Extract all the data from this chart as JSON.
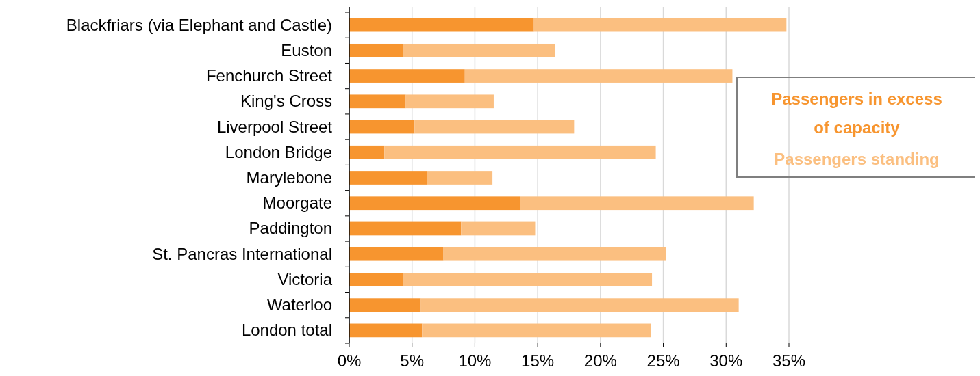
{
  "chart_data": {
    "type": "bar",
    "orientation": "horizontal",
    "stacked": true,
    "categories": [
      "Blackfriars (via Elephant and Castle)",
      "Euston",
      "Fenchurch Street",
      "King's Cross",
      "Liverpool Street",
      "London Bridge",
      "Marylebone",
      "Moorgate",
      "Paddington",
      "St. Pancras International",
      "Victoria",
      "Waterloo",
      "London total"
    ],
    "series": [
      {
        "name": "Passengers in excess of capacity",
        "color": "#f7952f",
        "values": [
          14.7,
          4.3,
          9.2,
          4.5,
          5.2,
          2.8,
          6.2,
          13.6,
          8.9,
          7.5,
          4.3,
          5.7,
          5.8
        ]
      },
      {
        "name": "Passengers standing",
        "color": "#fbbf80",
        "values": [
          20.1,
          12.1,
          21.3,
          7.0,
          12.7,
          21.6,
          5.2,
          18.6,
          5.9,
          17.7,
          19.8,
          25.3,
          18.2
        ]
      }
    ],
    "xlim": [
      0,
      35
    ],
    "xticks": [
      {
        "value": 0,
        "label": "0%"
      },
      {
        "value": 5,
        "label": "5%"
      },
      {
        "value": 10,
        "label": "10%"
      },
      {
        "value": 15,
        "label": "15%"
      },
      {
        "value": 20,
        "label": "20%"
      },
      {
        "value": 25,
        "label": "25%"
      },
      {
        "value": 30,
        "label": "30%"
      },
      {
        "value": 35,
        "label": "35%"
      }
    ],
    "grid": "x",
    "legend": "right"
  }
}
